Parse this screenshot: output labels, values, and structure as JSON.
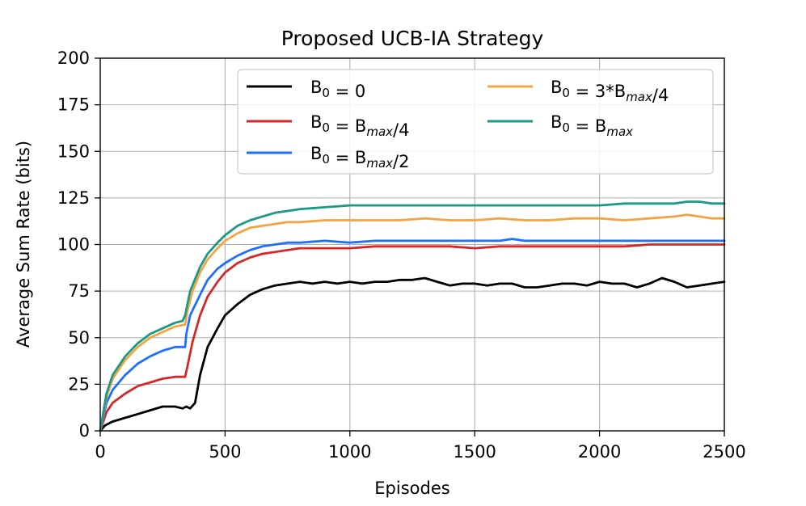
{
  "chart_data": {
    "type": "line",
    "title": "Proposed UCB-IA Strategy",
    "xlabel": "Episodes",
    "ylabel": "Average Sum Rate (bits)",
    "xlim": [
      0,
      2500
    ],
    "ylim": [
      0,
      200
    ],
    "xticks": [
      "0",
      "500",
      "1000",
      "1500",
      "2000",
      "2500"
    ],
    "yticks": [
      "0",
      "25",
      "50",
      "75",
      "100",
      "125",
      "150",
      "175",
      "200"
    ],
    "grid": true,
    "legend_position": "top-right",
    "legend_columns": 2,
    "series": [
      {
        "name": "B_0 = 0",
        "legend_parts": [
          {
            "t": "B"
          },
          {
            "t": "0",
            "s": "sub"
          },
          {
            "t": " = 0"
          }
        ],
        "color": "#000000",
        "x": [
          0,
          20,
          50,
          100,
          150,
          200,
          250,
          300,
          330,
          345,
          360,
          380,
          400,
          430,
          470,
          500,
          550,
          600,
          650,
          700,
          750,
          800,
          850,
          900,
          950,
          1000,
          1050,
          1100,
          1150,
          1200,
          1250,
          1300,
          1350,
          1400,
          1450,
          1500,
          1550,
          1600,
          1650,
          1700,
          1750,
          1800,
          1850,
          1900,
          1950,
          2000,
          2050,
          2100,
          2150,
          2200,
          2250,
          2300,
          2350,
          2400,
          2450,
          2500
        ],
        "y": [
          0,
          3,
          5,
          7,
          9,
          11,
          13,
          13,
          12,
          13,
          12,
          15,
          30,
          45,
          55,
          62,
          68,
          73,
          76,
          78,
          79,
          80,
          79,
          80,
          79,
          80,
          79,
          80,
          80,
          81,
          81,
          82,
          80,
          78,
          79,
          79,
          78,
          79,
          79,
          77,
          77,
          78,
          79,
          79,
          78,
          80,
          79,
          79,
          77,
          79,
          82,
          80,
          77,
          78,
          79,
          80
        ]
      },
      {
        "name": "B_0 = B_max/4",
        "legend_parts": [
          {
            "t": "B"
          },
          {
            "t": "0",
            "s": "sub"
          },
          {
            "t": " = B"
          },
          {
            "t": "max",
            "s": "subi"
          },
          {
            "t": "/4"
          }
        ],
        "color": "#d62728",
        "x": [
          0,
          25,
          50,
          100,
          150,
          200,
          250,
          300,
          340,
          350,
          370,
          400,
          430,
          470,
          500,
          550,
          600,
          650,
          700,
          750,
          800,
          900,
          1000,
          1100,
          1200,
          1300,
          1400,
          1500,
          1600,
          1700,
          1800,
          1900,
          2000,
          2100,
          2200,
          2300,
          2400,
          2500
        ],
        "y": [
          0,
          10,
          15,
          20,
          24,
          26,
          28,
          29,
          29,
          35,
          48,
          62,
          72,
          80,
          85,
          90,
          93,
          95,
          96,
          97,
          98,
          98,
          98,
          99,
          99,
          99,
          99,
          98,
          99,
          99,
          99,
          99,
          99,
          99,
          100,
          100,
          100,
          100
        ]
      },
      {
        "name": "B_0 = B_max/2",
        "legend_parts": [
          {
            "t": "B"
          },
          {
            "t": "0",
            "s": "sub"
          },
          {
            "t": " = B"
          },
          {
            "t": "max",
            "s": "subi"
          },
          {
            "t": "/2"
          }
        ],
        "color": "#1f6fff",
        "x": [
          0,
          25,
          50,
          100,
          150,
          200,
          250,
          300,
          340,
          345,
          360,
          400,
          430,
          470,
          500,
          550,
          600,
          650,
          700,
          750,
          800,
          900,
          1000,
          1100,
          1200,
          1300,
          1400,
          1500,
          1600,
          1650,
          1700,
          1800,
          1900,
          2000,
          2100,
          2200,
          2300,
          2400,
          2500
        ],
        "y": [
          0,
          15,
          22,
          30,
          36,
          40,
          43,
          45,
          45,
          52,
          62,
          73,
          81,
          87,
          90,
          94,
          97,
          99,
          100,
          101,
          101,
          102,
          101,
          102,
          102,
          102,
          102,
          102,
          102,
          103,
          102,
          102,
          102,
          102,
          102,
          102,
          102,
          102,
          102
        ]
      },
      {
        "name": "B_0 = 3*B_max/4",
        "legend_parts": [
          {
            "t": "B"
          },
          {
            "t": "0",
            "s": "sub"
          },
          {
            "t": " = 3*B"
          },
          {
            "t": "max",
            "s": "subi"
          },
          {
            "t": "/4"
          }
        ],
        "color": "#f5a442",
        "x": [
          0,
          25,
          50,
          100,
          150,
          200,
          250,
          300,
          340,
          350,
          370,
          400,
          430,
          470,
          500,
          550,
          600,
          650,
          700,
          750,
          800,
          900,
          1000,
          1100,
          1200,
          1300,
          1400,
          1500,
          1600,
          1700,
          1800,
          1900,
          2000,
          2100,
          2200,
          2300,
          2350,
          2400,
          2450,
          2500
        ],
        "y": [
          0,
          18,
          28,
          38,
          45,
          50,
          53,
          56,
          57,
          65,
          75,
          85,
          92,
          98,
          102,
          106,
          109,
          110,
          111,
          112,
          112,
          113,
          113,
          113,
          113,
          114,
          113,
          113,
          114,
          113,
          113,
          114,
          114,
          113,
          114,
          115,
          116,
          115,
          114,
          114
        ]
      },
      {
        "name": "B_0 = B_max",
        "legend_parts": [
          {
            "t": "B"
          },
          {
            "t": "0",
            "s": "sub"
          },
          {
            "t": " = B"
          },
          {
            "t": "max",
            "s": "subi"
          }
        ],
        "color": "#1a9a85",
        "x": [
          0,
          25,
          50,
          100,
          150,
          200,
          250,
          300,
          330,
          340,
          360,
          400,
          430,
          470,
          500,
          550,
          600,
          650,
          700,
          750,
          800,
          900,
          1000,
          1100,
          1200,
          1300,
          1400,
          1500,
          1600,
          1700,
          1800,
          1900,
          2000,
          2100,
          2200,
          2300,
          2350,
          2400,
          2450,
          2500
        ],
        "y": [
          0,
          20,
          30,
          40,
          47,
          52,
          55,
          58,
          59,
          62,
          75,
          88,
          95,
          101,
          105,
          110,
          113,
          115,
          117,
          118,
          119,
          120,
          121,
          121,
          121,
          121,
          121,
          121,
          121,
          121,
          121,
          121,
          121,
          122,
          122,
          122,
          123,
          123,
          122,
          122
        ]
      }
    ]
  }
}
